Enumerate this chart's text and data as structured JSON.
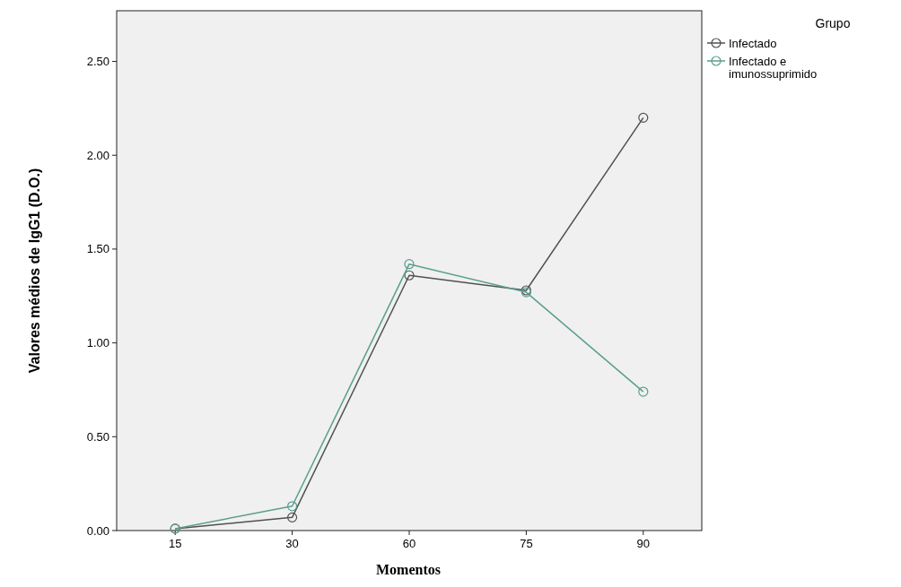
{
  "chart_data": {
    "type": "line",
    "xlabel": "Momentos",
    "ylabel": "Valores médios de IgG1 (D.O.)",
    "legend_title": "Grupo",
    "legend": "top right",
    "marker": "circle",
    "categories": [
      "15",
      "30",
      "60",
      "75",
      "90"
    ],
    "ylim": [
      0,
      2.77
    ],
    "yticks": [
      {
        "value": 0,
        "label": "0.00"
      },
      {
        "value": 0.5,
        "label": "0.50"
      },
      {
        "value": 1,
        "label": "1.00"
      },
      {
        "value": 1.5,
        "label": "1.50"
      },
      {
        "value": 2,
        "label": "2.00"
      },
      {
        "value": 2.5,
        "label": "2.50"
      }
    ],
    "series": [
      {
        "name": "Infectado",
        "color": "#505050",
        "values": [
          0.01,
          0.07,
          1.36,
          1.28,
          2.2
        ]
      },
      {
        "name": "Infectado e imunossuprimido",
        "color": "#5a9e8f",
        "values": [
          0.01,
          0.13,
          1.42,
          1.27,
          0.74
        ]
      }
    ]
  }
}
